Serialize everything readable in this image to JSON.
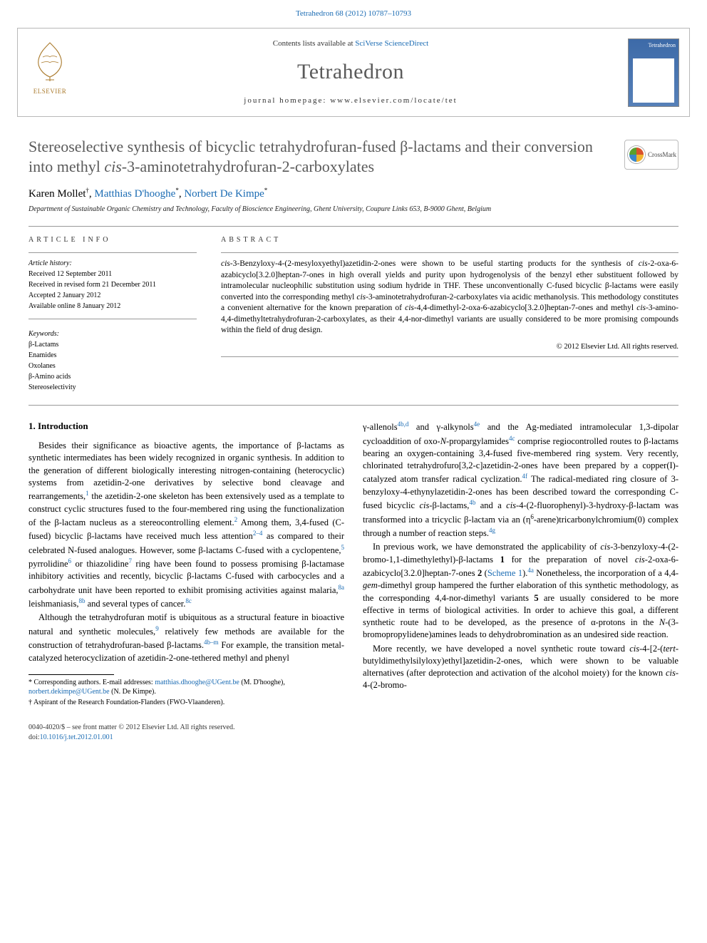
{
  "meta": {
    "citation_prefix": "Tetrahedron 68 (2012) 10787–10793",
    "contents_text": "Contents lists available at ",
    "contents_link": "SciVerse ScienceDirect",
    "journal": "Tetrahedron",
    "homepage_label": "journal homepage: ",
    "homepage_url": "www.elsevier.com/locate/tet",
    "publisher": "ELSEVIER",
    "cover_label": "Tetrahedron"
  },
  "title": {
    "pre": "Stereoselective synthesis of bicyclic tetrahydrofuran-fused β-lactams and their conversion into methyl ",
    "ital": "cis",
    "post": "-3-aminotetrahydrofuran-2-carboxylates"
  },
  "crossmark": "CrossMark",
  "authors": {
    "a1": "Karen Mollet",
    "sup1": "†",
    "a2": "Matthias D'hooghe",
    "a3": "Norbert De Kimpe",
    "star": "*",
    "sep": ", "
  },
  "affiliation": "Department of Sustainable Organic Chemistry and Technology, Faculty of Bioscience Engineering, Ghent University, Coupure Links 653, B-9000 Ghent, Belgium",
  "article_info": {
    "heading": "ARTICLE INFO",
    "history_label": "Article history:",
    "received": "Received 12 September 2011",
    "revised": "Received in revised form 21 December 2011",
    "accepted": "Accepted 2 January 2012",
    "online": "Available online 8 January 2012",
    "keywords_label": "Keywords:",
    "kw": [
      "β-Lactams",
      "Enamides",
      "Oxolanes",
      "β-Amino acids",
      "Stereoselectivity"
    ]
  },
  "abstract": {
    "heading": "ABSTRACT",
    "text_parts": [
      {
        "t": "cis",
        "i": true
      },
      {
        "t": "-3-Benzyloxy-4-(2-mesyloxyethyl)azetidin-2-ones were shown to be useful starting products for the synthesis of "
      },
      {
        "t": "cis",
        "i": true
      },
      {
        "t": "-2-oxa-6-azabicyclo[3.2.0]heptan-7-ones in high overall yields and purity upon hydrogenolysis of the benzyl ether substituent followed by intramolecular nucleophilic substitution using sodium hydride in THF. These unconventionally C-fused bicyclic β-lactams were easily converted into the corresponding methyl "
      },
      {
        "t": "cis",
        "i": true
      },
      {
        "t": "-3-aminotetrahydrofuran-2-carboxylates via acidic methanolysis. This methodology constitutes a convenient alternative for the known preparation of "
      },
      {
        "t": "cis",
        "i": true
      },
      {
        "t": "-4,4-dimethyl-2-oxa-6-azabicyclo[3.2.0]heptan-7-ones and methyl "
      },
      {
        "t": "cis",
        "i": true
      },
      {
        "t": "-3-amino-4,4-dimethyltetrahydrofuran-2-carboxylates, as their 4,4-nor-dimethyl variants are usually considered to be more promising compounds within the field of drug design."
      }
    ],
    "copyright": "© 2012 Elsevier Ltd. All rights reserved."
  },
  "body": {
    "sec1": "1. Introduction",
    "col1_p1": "Besides their significance as bioactive agents, the importance of β-lactams as synthetic intermediates has been widely recognized in organic synthesis. In addition to the generation of different biologically interesting nitrogen-containing (heterocyclic) systems from azetidin-2-one derivatives by selective bond cleavage and rearrangements, the azetidin-2-one skeleton has been extensively used as a template to construct cyclic structures fused to the four-membered ring using the functionalization of the β-lactam nucleus as a stereocontrolling element. Among them, 3,4-fused (C-fused) bicyclic β-lactams have received much less attention as compared to their celebrated N-fused analogues. However, some β-lactams C-fused with a cyclopentene, pyrrolidine or thiazolidine ring have been found to possess promising β-lactamase inhibitory activities and recently, bicyclic β-lactams C-fused with carbocycles and a carbohydrate unit have been reported to exhibit promising activities against malaria, leishmaniasis, and several types of cancer.",
    "refs_p1": {
      "r1": "1",
      "r2": "2",
      "r3": "2–4",
      "r5": "5",
      "r6": "6",
      "r7": "7",
      "r8a": "8a",
      "r8b": "8b",
      "r8c": "8c"
    },
    "col1_p2": "Although the tetrahydrofuran motif is ubiquitous as a structural feature in bioactive natural and synthetic molecules, relatively few methods are available for the construction of tetrahydrofuran-based β-lactams. For example, the transition metal-catalyzed heterocyclization of azetidin-2-one-tethered methyl and phenyl",
    "refs_p2": {
      "r9": "9",
      "r4bm": "4b–m"
    },
    "col2_p1_parts": [
      {
        "t": "γ-allenols"
      },
      {
        "s": "4b,d"
      },
      {
        "t": " and γ-alkynols"
      },
      {
        "s": "4e"
      },
      {
        "t": " and the Ag-mediated intramolecular 1,3-dipolar cycloaddition of oxo-"
      },
      {
        "i": "N"
      },
      {
        "t": "-propargylamides"
      },
      {
        "s": "4c"
      },
      {
        "t": " comprise regiocontrolled routes to β-lactams bearing an oxygen-containing 3,4-fused five-membered ring system. Very recently, chlorinated tetrahydrofuro[3,2-c]azetidin-2-ones have been prepared by a copper(I)-catalyzed atom transfer radical cyclization."
      },
      {
        "s": "4f"
      },
      {
        "t": " The radical-mediated ring closure of 3-benzyloxy-4-ethynylazetidin-2-ones has been described toward the corresponding C-fused bicyclic "
      },
      {
        "i": "cis"
      },
      {
        "t": "-β-lactams,"
      },
      {
        "s": "4b"
      },
      {
        "t": " and a "
      },
      {
        "i": "cis"
      },
      {
        "t": "-4-(2-fluorophenyl)-3-hydroxy-β-lactam was transformed into a tricyclic β-lactam via an (η"
      },
      {
        "sb": "6"
      },
      {
        "t": "-arene)tricarbonylchromium(0) complex through a number of reaction steps."
      },
      {
        "s": "4g"
      }
    ],
    "col2_p2_parts": [
      {
        "t": "In previous work, we have demonstrated the applicability of "
      },
      {
        "i": "cis"
      },
      {
        "t": "-3-benzyloxy-4-(2-bromo-1,1-dimethylethyl)-β-lactams "
      },
      {
        "b": "1"
      },
      {
        "t": " for the preparation of novel "
      },
      {
        "i": "cis"
      },
      {
        "t": "-2-oxa-6-azabicyclo[3.2.0]heptan-7-ones "
      },
      {
        "b": "2"
      },
      {
        "t": " ("
      },
      {
        "l": "Scheme 1"
      },
      {
        "t": ")."
      },
      {
        "s": "4a"
      },
      {
        "t": " Nonetheless, the incorporation of a 4,4-"
      },
      {
        "i": "gem"
      },
      {
        "t": "-dimethyl group hampered the further elaboration of this synthetic methodology, as the corresponding 4,4-nor-dimethyl variants "
      },
      {
        "b": "5"
      },
      {
        "t": " are usually considered to be more effective in terms of biological activities. In order to achieve this goal, a different synthetic route had to be developed, as the presence of α-protons in the "
      },
      {
        "i": "N"
      },
      {
        "t": "-(3-bromopropylidene)amines leads to dehydrobromination as an undesired side reaction."
      }
    ],
    "col2_p3_parts": [
      {
        "t": "More recently, we have developed a novel synthetic route toward "
      },
      {
        "i": "cis"
      },
      {
        "t": "-4-[2-("
      },
      {
        "i": "tert"
      },
      {
        "t": "-butyldimethylsilyloxy)ethyl]azetidin-2-ones, which were shown to be valuable alternatives (after deprotection and activation of the alcohol moiety) for the known "
      },
      {
        "i": "cis"
      },
      {
        "t": "-4-(2-bromo-"
      }
    ]
  },
  "footnotes": {
    "corr_label": "* Corresponding authors. E-mail addresses: ",
    "email1": "matthias.dhooghe@UGent.be",
    "name1": " (M. D'hooghe), ",
    "email2": "norbert.dekimpe@UGent.be",
    "name2": " (N. De Kimpe).",
    "dagger": "† Aspirant of the Research Foundation-Flanders (FWO-Vlaanderen)."
  },
  "bottom": {
    "issn": "0040-4020/$ – see front matter © 2012 Elsevier Ltd. All rights reserved.",
    "doi_label": "doi:",
    "doi": "10.1016/j.tet.2012.01.001"
  },
  "colors": {
    "link": "#1a6bb3",
    "heading_gray": "#5a5a5a",
    "rule": "#999999"
  }
}
